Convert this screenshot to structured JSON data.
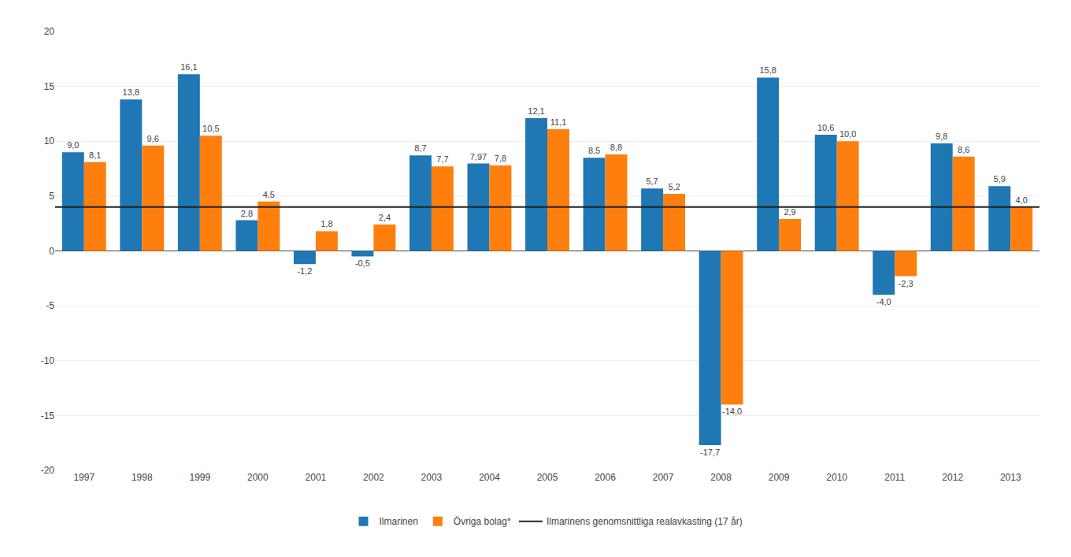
{
  "chart_data": {
    "type": "bar",
    "categories": [
      "1997",
      "1998",
      "1999",
      "2000",
      "2001",
      "2002",
      "2003",
      "2004",
      "2005",
      "2006",
      "2007",
      "2008",
      "2009",
      "2010",
      "2011",
      "2012",
      "2013"
    ],
    "series": [
      {
        "name": "Ilmarinen",
        "values": [
          9.0,
          13.8,
          16.1,
          2.8,
          -1.2,
          -0.5,
          8.7,
          7.97,
          12.1,
          8.5,
          5.7,
          -17.7,
          15.8,
          10.6,
          -4.0,
          9.8,
          5.9
        ],
        "value_labels": [
          "9,0",
          "13,8",
          "16,1",
          "2,8",
          "-1,2",
          "-0,5",
          "8,7",
          "7,97",
          "12,1",
          "8,5",
          "5,7",
          "-17,7",
          "15,8",
          "10,6",
          "-4,0",
          "9,8",
          "5,9"
        ]
      },
      {
        "name": "Övriga bolag*",
        "values": [
          8.1,
          9.6,
          10.5,
          4.5,
          1.8,
          2.4,
          7.7,
          7.8,
          11.1,
          8.8,
          5.2,
          -14.0,
          2.9,
          10.0,
          -2.3,
          8.6,
          4.0
        ],
        "value_labels": [
          "8,1",
          "9,6",
          "10,5",
          "4,5",
          "1,8",
          "2,4",
          "7,7",
          "7,8",
          "11,1",
          "8,8",
          "5,2",
          "-14,0",
          "2,9",
          "10,0",
          "-2,3",
          "8,6",
          "4,0"
        ]
      }
    ],
    "hlines": [
      {
        "name": "Ilmarinens genomsnittliga realavkasting (17 år)",
        "value": 4.0,
        "color": "#222222"
      }
    ],
    "ylim": [
      -20,
      20
    ],
    "yticks": [
      -20,
      -15,
      -10,
      -5,
      0,
      5,
      10,
      15,
      20
    ],
    "grid": true,
    "legend": "bottom",
    "data_labels": true
  }
}
